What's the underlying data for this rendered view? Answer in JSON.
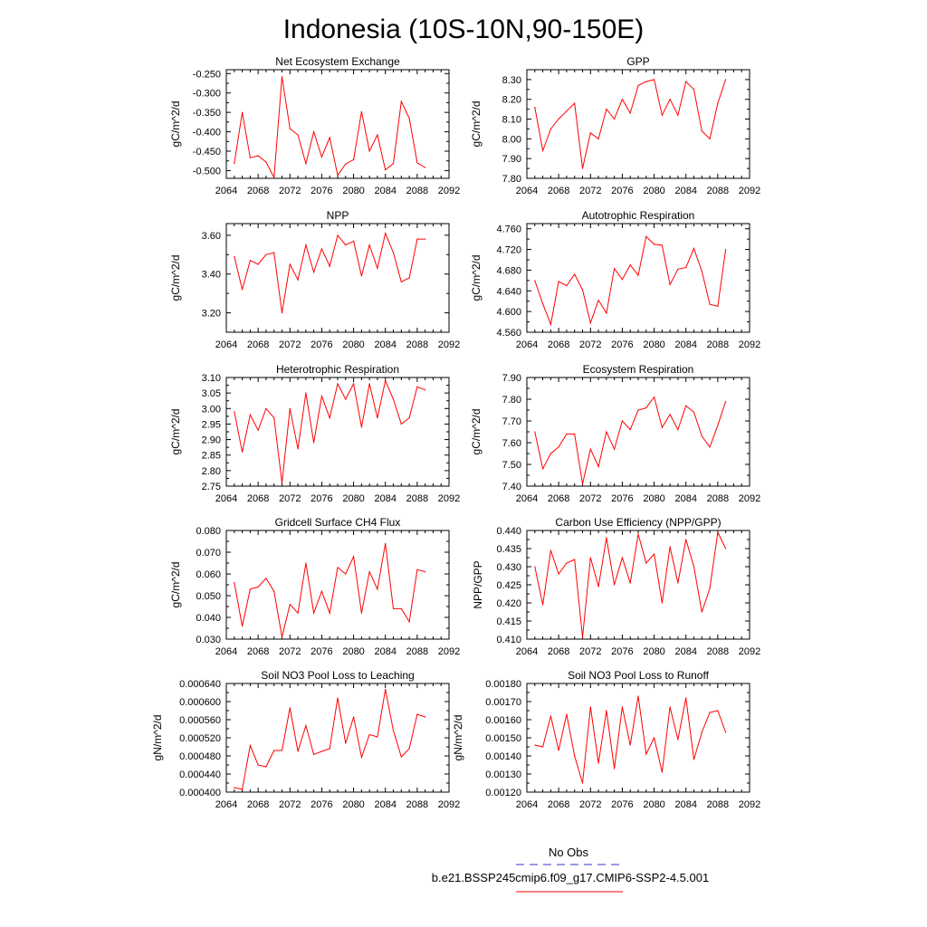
{
  "title": "Indonesia (10S-10N,90-150E)",
  "legend": {
    "obs_label": "No Obs",
    "obs_color": "#3333cc",
    "model_label": "b.e21.BSSP245cmip6.f09_g17.CMIP6-SSP2-4.5.001",
    "model_color": "#ff0000"
  },
  "chart_data": [
    {
      "type": "line",
      "title": "Net Ecosystem Exchange",
      "ylabel": "gC/m^2/d",
      "xlim": [
        2064,
        2092
      ],
      "xticks": [
        "2064",
        "2068",
        "2072",
        "2076",
        "2080",
        "2084",
        "2088",
        "2092"
      ],
      "ylim": [
        -0.52,
        -0.24
      ],
      "yticks": [
        "-0.250",
        "-0.300",
        "-0.350",
        "-0.400",
        "-0.450",
        "-0.500"
      ],
      "ytick_values": [
        -0.25,
        -0.3,
        -0.35,
        -0.4,
        -0.45,
        -0.5
      ],
      "x": [
        2065,
        2066,
        2067,
        2068,
        2069,
        2070,
        2071,
        2072,
        2073,
        2074,
        2075,
        2076,
        2077,
        2078,
        2079,
        2080,
        2081,
        2082,
        2083,
        2084,
        2085,
        2086,
        2087,
        2088,
        2089
      ],
      "series": [
        {
          "values": [
            -0.482,
            -0.35,
            -0.467,
            -0.462,
            -0.478,
            -0.518,
            -0.258,
            -0.392,
            -0.408,
            -0.482,
            -0.4,
            -0.465,
            -0.415,
            -0.512,
            -0.483,
            -0.472,
            -0.348,
            -0.45,
            -0.408,
            -0.498,
            -0.482,
            -0.322,
            -0.365,
            -0.48,
            -0.492
          ]
        }
      ]
    },
    {
      "type": "line",
      "title": "GPP",
      "ylabel": "gC/m^2/d",
      "xlim": [
        2064,
        2092
      ],
      "xticks": [
        "2064",
        "2068",
        "2072",
        "2076",
        "2080",
        "2084",
        "2088",
        "2092"
      ],
      "ylim": [
        7.8,
        8.35
      ],
      "yticks": [
        "8.30",
        "8.20",
        "8.10",
        "8.00",
        "7.90",
        "7.80"
      ],
      "ytick_values": [
        8.3,
        8.2,
        8.1,
        8.0,
        7.9,
        7.8
      ],
      "x": [
        2065,
        2066,
        2067,
        2068,
        2069,
        2070,
        2071,
        2072,
        2073,
        2074,
        2075,
        2076,
        2077,
        2078,
        2079,
        2080,
        2081,
        2082,
        2083,
        2084,
        2085,
        2086,
        2087,
        2088,
        2089
      ],
      "series": [
        {
          "values": [
            8.16,
            7.94,
            8.05,
            8.1,
            8.14,
            8.18,
            7.85,
            8.03,
            8.0,
            8.15,
            8.1,
            8.2,
            8.13,
            8.27,
            8.29,
            8.3,
            8.12,
            8.2,
            8.12,
            8.29,
            8.25,
            8.04,
            8.0,
            8.18,
            8.3
          ]
        }
      ]
    },
    {
      "type": "line",
      "title": "NPP",
      "ylabel": "gC/m^2/d",
      "xlim": [
        2064,
        2092
      ],
      "xticks": [
        "2064",
        "2068",
        "2072",
        "2076",
        "2080",
        "2084",
        "2088",
        "2092"
      ],
      "ylim": [
        3.1,
        3.66
      ],
      "yticks": [
        "3.60",
        "3.40",
        "3.20"
      ],
      "ytick_values": [
        3.6,
        3.4,
        3.2
      ],
      "x": [
        2065,
        2066,
        2067,
        2068,
        2069,
        2070,
        2071,
        2072,
        2073,
        2074,
        2075,
        2076,
        2077,
        2078,
        2079,
        2080,
        2081,
        2082,
        2083,
        2084,
        2085,
        2086,
        2087,
        2088,
        2089
      ],
      "series": [
        {
          "values": [
            3.49,
            3.32,
            3.47,
            3.45,
            3.5,
            3.51,
            3.2,
            3.45,
            3.37,
            3.55,
            3.41,
            3.53,
            3.44,
            3.6,
            3.55,
            3.57,
            3.39,
            3.55,
            3.43,
            3.61,
            3.51,
            3.36,
            3.38,
            3.58,
            3.58
          ]
        }
      ]
    },
    {
      "type": "line",
      "title": "Autotrophic Respiration",
      "ylabel": "gC/m^2/d",
      "xlim": [
        2064,
        2092
      ],
      "xticks": [
        "2064",
        "2068",
        "2072",
        "2076",
        "2080",
        "2084",
        "2088",
        "2092"
      ],
      "ylim": [
        4.56,
        4.77
      ],
      "yticks": [
        "4.760",
        "4.720",
        "4.680",
        "4.640",
        "4.600",
        "4.560"
      ],
      "ytick_values": [
        4.76,
        4.72,
        4.68,
        4.64,
        4.6,
        4.56
      ],
      "x": [
        2065,
        2066,
        2067,
        2068,
        2069,
        2070,
        2071,
        2072,
        2073,
        2074,
        2075,
        2076,
        2077,
        2078,
        2079,
        2080,
        2081,
        2082,
        2083,
        2084,
        2085,
        2086,
        2087,
        2088,
        2089
      ],
      "series": [
        {
          "values": [
            4.66,
            4.615,
            4.575,
            4.658,
            4.65,
            4.672,
            4.642,
            4.578,
            4.622,
            4.597,
            4.683,
            4.662,
            4.69,
            4.67,
            4.745,
            4.73,
            4.728,
            4.652,
            4.682,
            4.685,
            4.722,
            4.678,
            4.614,
            4.61,
            4.72
          ]
        }
      ]
    },
    {
      "type": "line",
      "title": "Heterotrophic Respiration",
      "ylabel": "gC/m^2/d",
      "xlim": [
        2064,
        2092
      ],
      "xticks": [
        "2064",
        "2068",
        "2072",
        "2076",
        "2080",
        "2084",
        "2088",
        "2092"
      ],
      "ylim": [
        2.75,
        3.1
      ],
      "yticks": [
        "3.10",
        "3.05",
        "3.00",
        "2.95",
        "2.90",
        "2.85",
        "2.80",
        "2.75"
      ],
      "ytick_values": [
        3.1,
        3.05,
        3.0,
        2.95,
        2.9,
        2.85,
        2.8,
        2.75
      ],
      "x": [
        2065,
        2066,
        2067,
        2068,
        2069,
        2070,
        2071,
        2072,
        2073,
        2074,
        2075,
        2076,
        2077,
        2078,
        2079,
        2080,
        2081,
        2082,
        2083,
        2084,
        2085,
        2086,
        2087,
        2088,
        2089
      ],
      "series": [
        {
          "values": [
            2.99,
            2.86,
            2.98,
            2.93,
            3.0,
            2.97,
            2.76,
            3.0,
            2.87,
            3.05,
            2.89,
            3.04,
            2.97,
            3.08,
            3.03,
            3.08,
            2.94,
            3.08,
            2.97,
            3.09,
            3.03,
            2.95,
            2.97,
            3.07,
            3.06
          ]
        }
      ]
    },
    {
      "type": "line",
      "title": "Ecosystem Respiration",
      "ylabel": "gC/m^2/d",
      "xlim": [
        2064,
        2092
      ],
      "xticks": [
        "2064",
        "2068",
        "2072",
        "2076",
        "2080",
        "2084",
        "2088",
        "2092"
      ],
      "ylim": [
        7.4,
        7.9
      ],
      "yticks": [
        "7.90",
        "7.80",
        "7.70",
        "7.60",
        "7.50",
        "7.40"
      ],
      "ytick_values": [
        7.9,
        7.8,
        7.7,
        7.6,
        7.5,
        7.4
      ],
      "x": [
        2065,
        2066,
        2067,
        2068,
        2069,
        2070,
        2071,
        2072,
        2073,
        2074,
        2075,
        2076,
        2077,
        2078,
        2079,
        2080,
        2081,
        2082,
        2083,
        2084,
        2085,
        2086,
        2087,
        2088,
        2089
      ],
      "series": [
        {
          "values": [
            7.65,
            7.48,
            7.55,
            7.58,
            7.64,
            7.64,
            7.41,
            7.57,
            7.49,
            7.65,
            7.57,
            7.7,
            7.66,
            7.75,
            7.76,
            7.81,
            7.67,
            7.73,
            7.66,
            7.77,
            7.74,
            7.63,
            7.58,
            7.68,
            7.79
          ]
        }
      ]
    },
    {
      "type": "line",
      "title": "Gridcell Surface CH4 Flux",
      "ylabel": "gC/m^2/d",
      "xlim": [
        2064,
        2092
      ],
      "xticks": [
        "2064",
        "2068",
        "2072",
        "2076",
        "2080",
        "2084",
        "2088",
        "2092"
      ],
      "ylim": [
        0.03,
        0.08
      ],
      "yticks": [
        "0.080",
        "0.070",
        "0.060",
        "0.050",
        "0.040",
        "0.030"
      ],
      "ytick_values": [
        0.08,
        0.07,
        0.06,
        0.05,
        0.04,
        0.03
      ],
      "x": [
        2065,
        2066,
        2067,
        2068,
        2069,
        2070,
        2071,
        2072,
        2073,
        2074,
        2075,
        2076,
        2077,
        2078,
        2079,
        2080,
        2081,
        2082,
        2083,
        2084,
        2085,
        2086,
        2087,
        2088,
        2089
      ],
      "series": [
        {
          "values": [
            0.056,
            0.036,
            0.053,
            0.054,
            0.058,
            0.052,
            0.031,
            0.046,
            0.042,
            0.065,
            0.042,
            0.052,
            0.042,
            0.063,
            0.06,
            0.068,
            0.042,
            0.061,
            0.053,
            0.074,
            0.044,
            0.044,
            0.038,
            0.062,
            0.061
          ]
        }
      ]
    },
    {
      "type": "line",
      "title": "Carbon Use Efficiency (NPP/GPP)",
      "ylabel": "NPP/GPP",
      "xlim": [
        2064,
        2092
      ],
      "xticks": [
        "2064",
        "2068",
        "2072",
        "2076",
        "2080",
        "2084",
        "2088",
        "2092"
      ],
      "ylim": [
        0.41,
        0.44
      ],
      "yticks": [
        "0.440",
        "0.435",
        "0.430",
        "0.425",
        "0.420",
        "0.415",
        "0.410"
      ],
      "ytick_values": [
        0.44,
        0.435,
        0.43,
        0.425,
        0.42,
        0.415,
        0.41
      ],
      "x": [
        2065,
        2066,
        2067,
        2068,
        2069,
        2070,
        2071,
        2072,
        2073,
        2074,
        2075,
        2076,
        2077,
        2078,
        2079,
        2080,
        2081,
        2082,
        2083,
        2084,
        2085,
        2086,
        2087,
        2088,
        2089
      ],
      "series": [
        {
          "values": [
            0.43,
            0.4195,
            0.4345,
            0.428,
            0.431,
            0.432,
            0.4105,
            0.4325,
            0.4245,
            0.438,
            0.425,
            0.4325,
            0.4255,
            0.439,
            0.431,
            0.4335,
            0.42,
            0.4355,
            0.4255,
            0.4375,
            0.43,
            0.4175,
            0.424,
            0.4395,
            0.435
          ]
        }
      ]
    },
    {
      "type": "line",
      "title": "Soil NO3 Pool Loss to Leaching",
      "ylabel": "gN/m^2/d",
      "xlim": [
        2064,
        2092
      ],
      "xticks": [
        "2064",
        "2068",
        "2072",
        "2076",
        "2080",
        "2084",
        "2088",
        "2092"
      ],
      "ylim": [
        0.0004,
        0.00064
      ],
      "yticks": [
        "0.000640",
        "0.000600",
        "0.000560",
        "0.000520",
        "0.000480",
        "0.000440",
        "0.000400"
      ],
      "ytick_values": [
        0.00064,
        0.0006,
        0.00056,
        0.00052,
        0.00048,
        0.00044,
        0.0004
      ],
      "x": [
        2065,
        2066,
        2067,
        2068,
        2069,
        2070,
        2071,
        2072,
        2073,
        2074,
        2075,
        2076,
        2077,
        2078,
        2079,
        2080,
        2081,
        2082,
        2083,
        2084,
        2085,
        2086,
        2087,
        2088,
        2089
      ],
      "series": [
        {
          "values": [
            0.00041,
            0.000406,
            0.000503,
            0.00046,
            0.000456,
            0.000492,
            0.000492,
            0.000586,
            0.00049,
            0.000547,
            0.000483,
            0.00049,
            0.000496,
            0.000608,
            0.000508,
            0.000566,
            0.000477,
            0.000527,
            0.000522,
            0.000627,
            0.000536,
            0.000478,
            0.000496,
            0.000572,
            0.000566
          ]
        }
      ]
    },
    {
      "type": "line",
      "title": "Soil NO3 Pool Loss to Runoff",
      "ylabel": "gN/m^2/d",
      "xlim": [
        2064,
        2092
      ],
      "xticks": [
        "2064",
        "2068",
        "2072",
        "2076",
        "2080",
        "2084",
        "2088",
        "2092"
      ],
      "ylim": [
        0.0012,
        0.0018
      ],
      "yticks": [
        "0.00180",
        "0.00170",
        "0.00160",
        "0.00150",
        "0.00140",
        "0.00130",
        "0.00120"
      ],
      "ytick_values": [
        0.0018,
        0.0017,
        0.0016,
        0.0015,
        0.0014,
        0.0013,
        0.0012
      ],
      "x": [
        2065,
        2066,
        2067,
        2068,
        2069,
        2070,
        2071,
        2072,
        2073,
        2074,
        2075,
        2076,
        2077,
        2078,
        2079,
        2080,
        2081,
        2082,
        2083,
        2084,
        2085,
        2086,
        2087,
        2088,
        2089
      ],
      "series": [
        {
          "values": [
            0.00146,
            0.00145,
            0.00162,
            0.00143,
            0.00163,
            0.0014,
            0.00125,
            0.00167,
            0.00136,
            0.00165,
            0.00133,
            0.00167,
            0.00146,
            0.00173,
            0.00141,
            0.0015,
            0.00131,
            0.00167,
            0.00149,
            0.00172,
            0.00138,
            0.00153,
            0.00164,
            0.00165,
            0.00153
          ]
        }
      ]
    }
  ]
}
